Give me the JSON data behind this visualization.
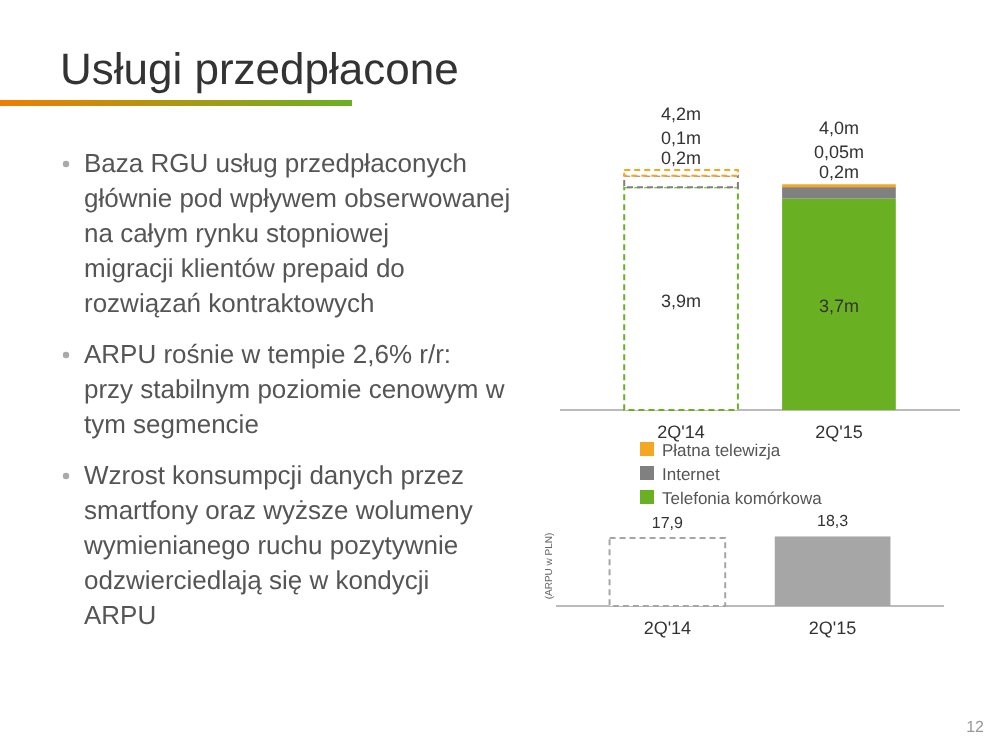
{
  "chart_data": [
    {
      "type": "other",
      "title": "Usługi przedpłacone",
      "annotations": [
        "Baza RGU usług przedpłaconych głównie pod wpływem obserwowanej na całym rynku stopniowej migracji klientów prepaid do rozwiązań kontraktowych",
        "ARPU rośnie w tempie 2,6% r/r: przy stabilnym poziomie cenowym w tym segmencie",
        "Wzrost konsumpcji danych przez smartfony oraz wyższe wolumeny wymienianego ruchu pozytywnie odzwierciedlają się w kondycji ARPU",
        "12"
      ]
    },
    {
      "type": "bar",
      "stacked": true,
      "categories": [
        "2Q'14",
        "2Q'15"
      ],
      "legend": "bottom",
      "totals": [
        "4,2m",
        "4,0m"
      ],
      "series": [
        {
          "name": "Telefonia komórkowa",
          "color": "#6ab023",
          "colors": [
            "#ffffff",
            "#6ab023"
          ],
          "values": [
            3.9,
            3.7
          ],
          "value_labels": [
            "3,9m",
            "3,7m"
          ]
        },
        {
          "name": "Internet",
          "color": "#808080",
          "colors": [
            "#ffffff",
            "#808080"
          ],
          "values": [
            0.2,
            0.2
          ],
          "value_labels": [
            "0,2m",
            "0,2m"
          ]
        },
        {
          "name": "Płatna telewizja",
          "color": "#f5a623",
          "colors": [
            "#ffffff",
            "#f5a623"
          ],
          "values": [
            0.1,
            0.05
          ],
          "value_labels": [
            "0,1m",
            "0,05m"
          ]
        }
      ]
    },
    {
      "type": "bar",
      "categories": [
        "2Q'14",
        "2Q'15"
      ],
      "ylabel": "(ARPU w PLN)",
      "ylim": [
        0,
        20
      ],
      "color": "#a6a6a6",
      "colors": [
        "#ffffff",
        "#a6a6a6"
      ],
      "values": [
        17.9,
        18.3
      ],
      "value_labels": [
        "17,9",
        "18,3"
      ]
    }
  ]
}
